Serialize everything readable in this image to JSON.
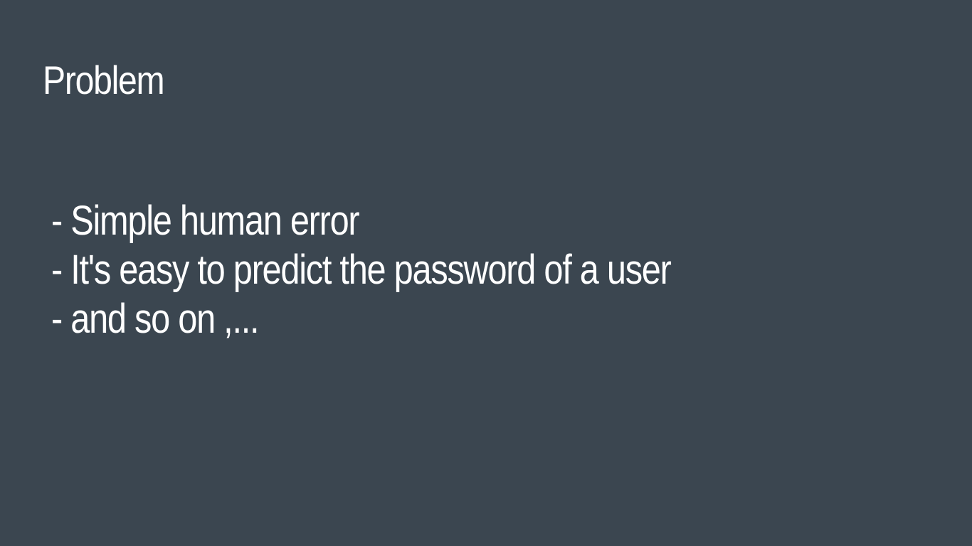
{
  "slide": {
    "background_color": "#3b4650",
    "text_color": "#ffffff",
    "title": "Problem",
    "bullets": [
      " - Simple human error",
      " - It's easy to predict the password of a user",
      " - and so on ,..."
    ]
  }
}
